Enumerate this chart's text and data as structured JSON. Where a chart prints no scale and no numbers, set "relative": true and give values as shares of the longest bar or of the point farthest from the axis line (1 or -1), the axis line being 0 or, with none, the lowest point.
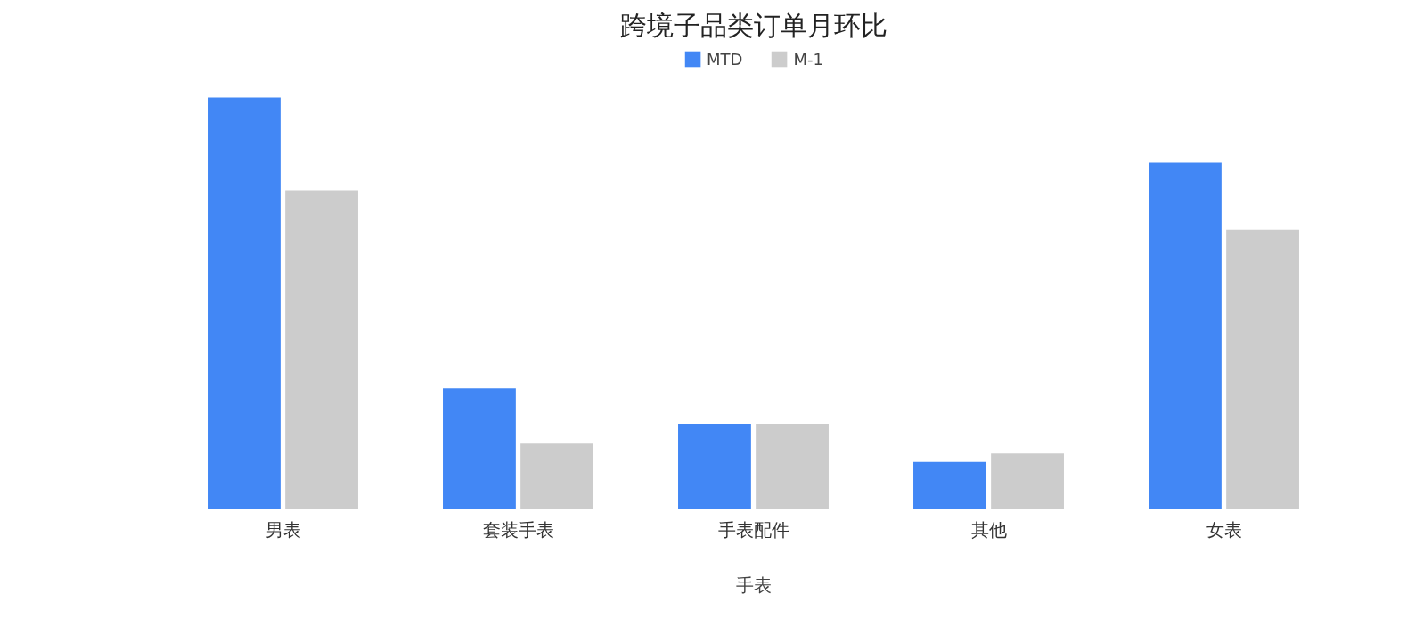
{
  "chart_data": {
    "type": "bar",
    "title": "跨境子品类订单月环比",
    "xlabel": "手表",
    "categories": [
      "男表",
      "套装手表",
      "手表配件",
      "其他",
      "女表"
    ],
    "relative": true,
    "legend": "top",
    "grid": false,
    "series": [
      {
        "name": "MTD",
        "color": "#4287f5",
        "values": [
          1,
          0.293,
          0.207,
          0.114,
          0.842
        ]
      },
      {
        "name": "M-1",
        "color": "#cccccc",
        "values": [
          0.775,
          0.161,
          0.207,
          0.135,
          0.679
        ]
      }
    ]
  }
}
